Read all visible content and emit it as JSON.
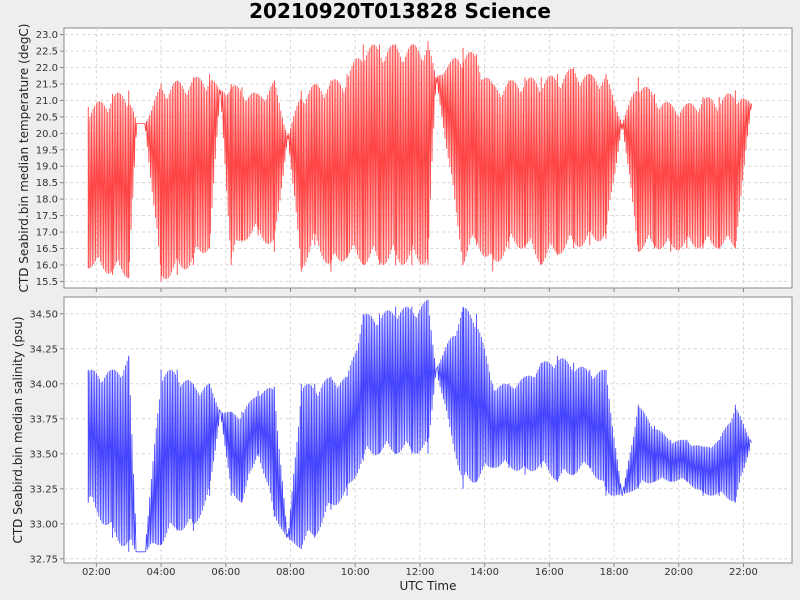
{
  "chart_data": [
    {
      "type": "line",
      "title": "20210920T013828 Science",
      "xlabel": "UTC Time",
      "ylabel": "CTD Seabird.bin median temperature (degC)",
      "xlim": [
        "01:00",
        "23:30"
      ],
      "ylim": [
        15.3,
        23.2
      ],
      "xticks": [
        "02:00",
        "04:00",
        "06:00",
        "08:00",
        "10:00",
        "12:00",
        "14:00",
        "16:00",
        "18:00",
        "20:00",
        "22:00"
      ],
      "yticks": [
        "15.5",
        "16.0",
        "16.5",
        "17.0",
        "17.5",
        "18.0",
        "18.5",
        "19.0",
        "19.5",
        "20.0",
        "20.5",
        "21.0",
        "21.5",
        "22.0",
        "22.5",
        "23.0"
      ],
      "grid": true,
      "color": "#ff4444",
      "x": [
        "01:45",
        "02:30",
        "03:00",
        "03:15",
        "03:30",
        "04:00",
        "04:30",
        "05:00",
        "05:30",
        "05:50",
        "06:10",
        "06:30",
        "07:00",
        "07:30",
        "07:55",
        "08:20",
        "08:45",
        "09:15",
        "09:45",
        "10:15",
        "10:45",
        "11:15",
        "11:45",
        "12:15",
        "12:30",
        "13:20",
        "13:45",
        "14:15",
        "14:45",
        "15:15",
        "15:45",
        "16:15",
        "16:45",
        "17:15",
        "17:45",
        "18:15",
        "18:45",
        "19:15",
        "19:45",
        "20:15",
        "20:45",
        "21:15",
        "21:45",
        "22:15"
      ],
      "y_max": [
        20.8,
        21.2,
        21.3,
        20.3,
        20.3,
        21.5,
        21.6,
        21.7,
        21.8,
        21.3,
        21.5,
        21.4,
        21.2,
        21.6,
        19.9,
        21.3,
        21.5,
        21.6,
        21.8,
        22.7,
        22.7,
        22.7,
        22.7,
        22.8,
        21.7,
        22.6,
        22.4,
        21.5,
        21.6,
        21.7,
        21.7,
        21.8,
        22.0,
        21.8,
        21.8,
        20.3,
        21.7,
        21.2,
        20.9,
        20.9,
        21.1,
        21.1,
        21.3,
        20.9
      ],
      "y_min": [
        15.9,
        15.7,
        15.6,
        20.3,
        20.3,
        15.5,
        15.7,
        16.0,
        16.5,
        21.3,
        16.0,
        16.7,
        16.9,
        16.4,
        19.9,
        15.8,
        16.6,
        15.8,
        16.2,
        16.0,
        16.0,
        16.0,
        16.0,
        16.0,
        21.7,
        16.0,
        16.6,
        15.8,
        16.5,
        16.5,
        16.0,
        16.3,
        16.5,
        16.6,
        16.8,
        20.3,
        16.4,
        16.5,
        16.4,
        16.5,
        16.5,
        16.5,
        16.5,
        20.9
      ]
    },
    {
      "type": "line",
      "title": "",
      "xlabel": "UTC Time",
      "ylabel": "CTD Seabird.bin median salinity (psu)",
      "xlim": [
        "01:00",
        "23:30"
      ],
      "ylim": [
        32.72,
        34.62
      ],
      "xticks": [
        "02:00",
        "04:00",
        "06:00",
        "08:00",
        "10:00",
        "12:00",
        "14:00",
        "16:00",
        "18:00",
        "20:00",
        "22:00"
      ],
      "yticks": [
        "32.75",
        "33.00",
        "33.25",
        "33.50",
        "33.75",
        "34.00",
        "34.25",
        "34.50"
      ],
      "grid": true,
      "color": "#4444ff",
      "x": [
        "01:45",
        "02:30",
        "03:00",
        "03:15",
        "03:30",
        "04:00",
        "04:30",
        "05:00",
        "05:30",
        "05:50",
        "06:10",
        "06:30",
        "07:00",
        "07:30",
        "07:55",
        "08:20",
        "08:45",
        "09:15",
        "09:45",
        "10:15",
        "10:45",
        "11:15",
        "11:45",
        "12:15",
        "12:30",
        "13:20",
        "13:45",
        "14:15",
        "14:45",
        "15:15",
        "15:45",
        "16:15",
        "16:45",
        "17:15",
        "17:45",
        "18:15",
        "18:45",
        "19:15",
        "19:45",
        "20:15",
        "20:45",
        "21:15",
        "21:45",
        "22:15"
      ],
      "y_max": [
        34.1,
        34.1,
        34.2,
        32.8,
        32.8,
        34.1,
        34.1,
        34.0,
        34.0,
        33.8,
        33.8,
        33.8,
        33.95,
        33.98,
        32.88,
        34.0,
        34.0,
        34.05,
        34.05,
        34.5,
        34.5,
        34.55,
        34.55,
        34.6,
        34.1,
        34.55,
        34.5,
        34.0,
        34.0,
        34.05,
        34.15,
        34.2,
        34.15,
        34.1,
        34.1,
        33.2,
        33.85,
        33.7,
        33.6,
        33.6,
        33.55,
        33.6,
        33.85,
        33.58
      ],
      "y_min": [
        33.15,
        32.9,
        32.8,
        32.8,
        32.8,
        32.85,
        32.95,
        32.95,
        33.2,
        33.8,
        33.2,
        33.15,
        33.5,
        33.05,
        32.88,
        32.82,
        32.9,
        33.1,
        33.2,
        33.45,
        33.5,
        33.5,
        33.5,
        33.5,
        34.1,
        33.25,
        33.3,
        33.4,
        33.4,
        33.35,
        33.4,
        33.3,
        33.35,
        33.4,
        33.2,
        33.2,
        33.25,
        33.3,
        33.3,
        33.3,
        33.2,
        33.2,
        33.15,
        33.58
      ]
    }
  ]
}
